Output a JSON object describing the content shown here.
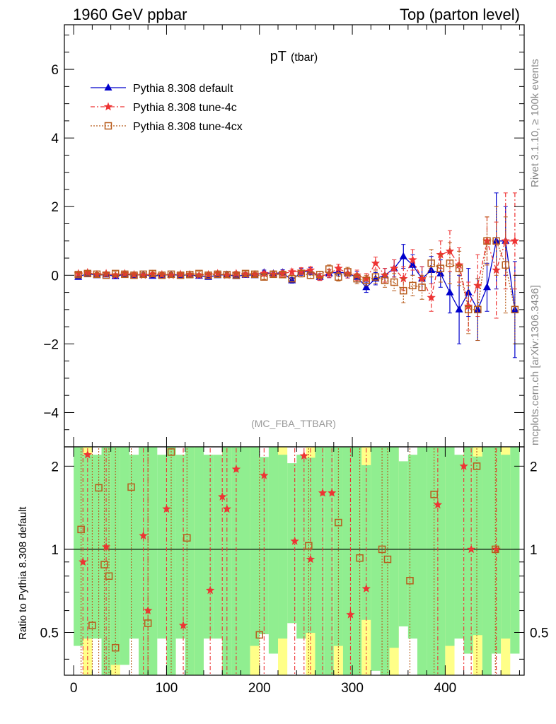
{
  "header": {
    "left": "1960 GeV ppbar",
    "right": "Top (parton level)"
  },
  "side_labels": {
    "rivet": "Rivet 3.1.10, ≥ 100k events",
    "mcplots": "mcplots.cern.ch [arXiv:1306.3436]"
  },
  "chart_data": {
    "type": "scatter",
    "title": "pT",
    "title_sub": "(tbar)",
    "watermark": "(MC_FBA_TTBAR)",
    "xlim": [
      -10,
      485
    ],
    "ylim": [
      -5,
      7.3
    ],
    "x_ticks": [
      0,
      100,
      200,
      300,
      400
    ],
    "y_ticks": [
      -4,
      -2,
      0,
      2,
      4,
      6
    ],
    "legend_position": "top-left",
    "series": [
      {
        "name": "Pythia 8.308 default",
        "color": "#0000cc",
        "marker": "triangle",
        "x": [
          5,
          15,
          25,
          35,
          45,
          55,
          65,
          75,
          85,
          95,
          105,
          115,
          125,
          135,
          145,
          155,
          165,
          175,
          185,
          195,
          205,
          215,
          225,
          235,
          245,
          255,
          265,
          275,
          285,
          295,
          305,
          315,
          325,
          335,
          345,
          355,
          365,
          375,
          385,
          395,
          405,
          415,
          425,
          435,
          445,
          455,
          465,
          475
        ],
        "y": [
          -0.05,
          0.05,
          0.0,
          0.02,
          -0.03,
          0.03,
          0.0,
          0.02,
          -0.02,
          0.0,
          0.02,
          0.0,
          0.01,
          -0.02,
          -0.05,
          0.0,
          0.02,
          -0.03,
          0.01,
          0.0,
          0.08,
          0.05,
          0.08,
          -0.15,
          0.1,
          0.12,
          -0.05,
          0.05,
          0.1,
          0.05,
          -0.05,
          -0.35,
          -0.1,
          0.0,
          0.2,
          0.55,
          0.3,
          -0.1,
          0.15,
          0.05,
          -0.5,
          -1.0,
          -0.5,
          -1.0,
          -0.35,
          1.0,
          1.0,
          -1.0
        ],
        "err": [
          0.06,
          0.05,
          0.05,
          0.05,
          0.05,
          0.05,
          0.05,
          0.05,
          0.05,
          0.05,
          0.05,
          0.05,
          0.05,
          0.05,
          0.05,
          0.05,
          0.06,
          0.06,
          0.06,
          0.06,
          0.07,
          0.07,
          0.08,
          0.08,
          0.1,
          0.1,
          0.1,
          0.12,
          0.12,
          0.13,
          0.15,
          0.15,
          0.18,
          0.2,
          0.25,
          0.35,
          0.3,
          0.35,
          0.4,
          0.4,
          0.6,
          1.0,
          0.7,
          0.9,
          0.7,
          1.4,
          1.0,
          1.4
        ]
      },
      {
        "name": "Pythia 8.308 tune-4c",
        "color": "#ee3333",
        "marker": "star",
        "x": [
          5,
          15,
          25,
          35,
          45,
          55,
          65,
          75,
          85,
          95,
          105,
          115,
          125,
          135,
          145,
          155,
          165,
          175,
          185,
          195,
          205,
          215,
          225,
          235,
          245,
          255,
          265,
          275,
          285,
          295,
          305,
          315,
          325,
          335,
          345,
          355,
          365,
          375,
          385,
          395,
          405,
          415,
          425,
          435,
          445,
          455,
          465,
          475
        ],
        "y": [
          0.05,
          0.08,
          0.02,
          0.05,
          0.0,
          0.05,
          0.02,
          0.0,
          0.03,
          0.02,
          0.0,
          0.03,
          0.02,
          0.0,
          0.02,
          0.05,
          0.0,
          0.05,
          0.02,
          0.02,
          0.05,
          0.03,
          0.05,
          0.1,
          0.12,
          0.15,
          -0.05,
          0.05,
          0.2,
          0.05,
          0.0,
          -0.1,
          0.35,
          0.0,
          0.2,
          -0.1,
          0.45,
          -0.1,
          -0.65,
          0.6,
          0.7,
          0.3,
          -0.9,
          -0.3,
          1.0,
          0.15,
          1.0,
          1.0
        ],
        "err": [
          0.06,
          0.05,
          0.05,
          0.05,
          0.05,
          0.05,
          0.05,
          0.05,
          0.05,
          0.05,
          0.05,
          0.05,
          0.05,
          0.05,
          0.05,
          0.05,
          0.06,
          0.06,
          0.06,
          0.06,
          0.07,
          0.07,
          0.08,
          0.08,
          0.1,
          0.1,
          0.1,
          0.12,
          0.12,
          0.13,
          0.15,
          0.15,
          0.18,
          0.2,
          0.25,
          0.35,
          0.3,
          0.35,
          0.4,
          0.4,
          0.6,
          0.5,
          0.7,
          0.9,
          0.7,
          1.4,
          1.4,
          1.4
        ]
      },
      {
        "name": "Pythia 8.308 tune-4cx",
        "color": "#b85c1c",
        "marker": "square",
        "x": [
          5,
          15,
          25,
          35,
          45,
          55,
          65,
          75,
          85,
          95,
          105,
          115,
          125,
          135,
          145,
          155,
          165,
          175,
          185,
          195,
          205,
          215,
          225,
          235,
          245,
          255,
          265,
          275,
          285,
          295,
          305,
          315,
          325,
          335,
          345,
          355,
          365,
          375,
          385,
          395,
          405,
          415,
          425,
          435,
          445,
          455,
          465,
          475
        ],
        "y": [
          0.02,
          0.05,
          0.03,
          0.0,
          0.05,
          0.03,
          0.0,
          0.03,
          0.05,
          0.0,
          0.03,
          0.0,
          0.02,
          0.05,
          0.0,
          0.03,
          0.02,
          0.0,
          0.05,
          0.03,
          -0.05,
          0.03,
          0.02,
          -0.1,
          0.05,
          0.0,
          0.02,
          0.18,
          -0.05,
          0.1,
          -0.1,
          -0.15,
          -0.05,
          -0.15,
          -0.2,
          -0.45,
          -0.3,
          -0.35,
          0.35,
          0.2,
          0.35,
          0.2,
          -1.0,
          -1.0,
          1.0,
          1.0,
          0.3,
          -1.0
        ],
        "err": [
          0.06,
          0.05,
          0.05,
          0.05,
          0.05,
          0.05,
          0.05,
          0.05,
          0.05,
          0.05,
          0.05,
          0.05,
          0.05,
          0.05,
          0.05,
          0.05,
          0.06,
          0.06,
          0.06,
          0.06,
          0.07,
          0.07,
          0.08,
          0.08,
          0.1,
          0.1,
          0.1,
          0.12,
          0.12,
          0.13,
          0.15,
          0.15,
          0.18,
          0.2,
          0.25,
          0.35,
          0.3,
          0.35,
          0.4,
          0.4,
          0.6,
          0.5,
          0.7,
          0.9,
          0.7,
          1.0,
          1.4,
          1.0
        ]
      }
    ],
    "ratio": {
      "ylabel": "Ratio to Pythia 8.308 default",
      "ylim": [
        0.35,
        2.35
      ],
      "y_ticks": [
        0.5,
        1,
        2
      ],
      "y_tick_labels": [
        "0.5",
        "1",
        "2"
      ],
      "band_colors": {
        "inner": "#90ee90",
        "outer": "#ffff88"
      },
      "tune4c_points": [
        {
          "x": 10,
          "y": 0.9
        },
        {
          "x": 15,
          "y": 2.2
        },
        {
          "x": 35,
          "y": 1.02
        },
        {
          "x": 75,
          "y": 1.12
        },
        {
          "x": 80,
          "y": 0.6
        },
        {
          "x": 100,
          "y": 1.4
        },
        {
          "x": 118,
          "y": 0.53
        },
        {
          "x": 147,
          "y": 0.71
        },
        {
          "x": 160,
          "y": 1.55
        },
        {
          "x": 165,
          "y": 1.4
        },
        {
          "x": 175,
          "y": 1.95
        },
        {
          "x": 205,
          "y": 1.85
        },
        {
          "x": 238,
          "y": 1.07
        },
        {
          "x": 248,
          "y": 2.18
        },
        {
          "x": 255,
          "y": 0.92
        },
        {
          "x": 268,
          "y": 1.6
        },
        {
          "x": 278,
          "y": 1.6
        },
        {
          "x": 298,
          "y": 0.58
        },
        {
          "x": 315,
          "y": 0.72
        },
        {
          "x": 392,
          "y": 1.45
        },
        {
          "x": 420,
          "y": 2.0
        },
        {
          "x": 428,
          "y": 1.0
        },
        {
          "x": 455,
          "y": 1.0
        }
      ],
      "tune4cx_points": [
        {
          "x": 8,
          "y": 1.18
        },
        {
          "x": 20,
          "y": 0.53
        },
        {
          "x": 27,
          "y": 1.67
        },
        {
          "x": 33,
          "y": 0.88
        },
        {
          "x": 38,
          "y": 0.8
        },
        {
          "x": 45,
          "y": 0.44
        },
        {
          "x": 62,
          "y": 1.68
        },
        {
          "x": 80,
          "y": 0.54
        },
        {
          "x": 105,
          "y": 2.25
        },
        {
          "x": 122,
          "y": 1.1
        },
        {
          "x": 200,
          "y": 0.49
        },
        {
          "x": 253,
          "y": 1.03
        },
        {
          "x": 285,
          "y": 1.25
        },
        {
          "x": 308,
          "y": 0.93
        },
        {
          "x": 332,
          "y": 1.0
        },
        {
          "x": 338,
          "y": 0.92
        },
        {
          "x": 362,
          "y": 0.77
        },
        {
          "x": 388,
          "y": 1.58
        },
        {
          "x": 434,
          "y": 2.0
        },
        {
          "x": 454,
          "y": 1.0
        }
      ]
    }
  }
}
